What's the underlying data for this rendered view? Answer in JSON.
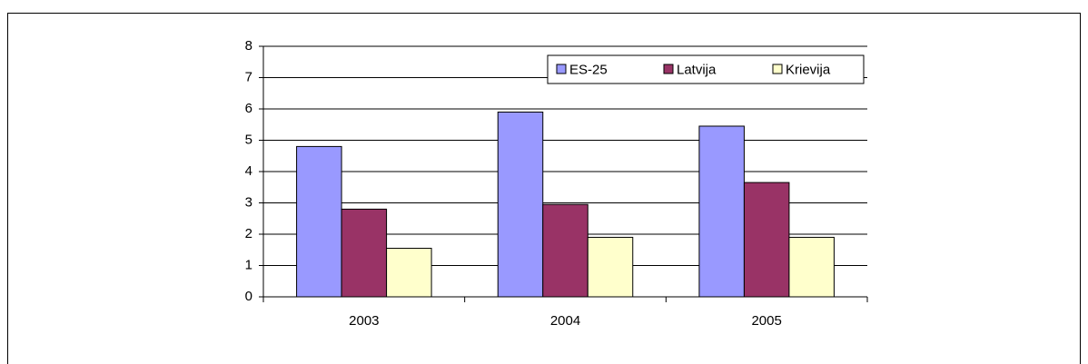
{
  "chart_data": {
    "type": "bar",
    "categories": [
      "2003",
      "2004",
      "2005"
    ],
    "series": [
      {
        "name": "ES-25",
        "color": "#9999ff",
        "values": [
          4.8,
          5.9,
          5.45
        ]
      },
      {
        "name": "Latvija",
        "color": "#993366",
        "values": [
          2.8,
          2.95,
          3.65
        ]
      },
      {
        "name": "Krievija",
        "color": "#ffffcc",
        "values": [
          1.55,
          1.9,
          1.9
        ]
      }
    ],
    "ylim": [
      0,
      8
    ],
    "yticks": [
      0,
      1,
      2,
      3,
      4,
      5,
      6,
      7,
      8
    ],
    "grid": true,
    "legend": "top-right"
  }
}
